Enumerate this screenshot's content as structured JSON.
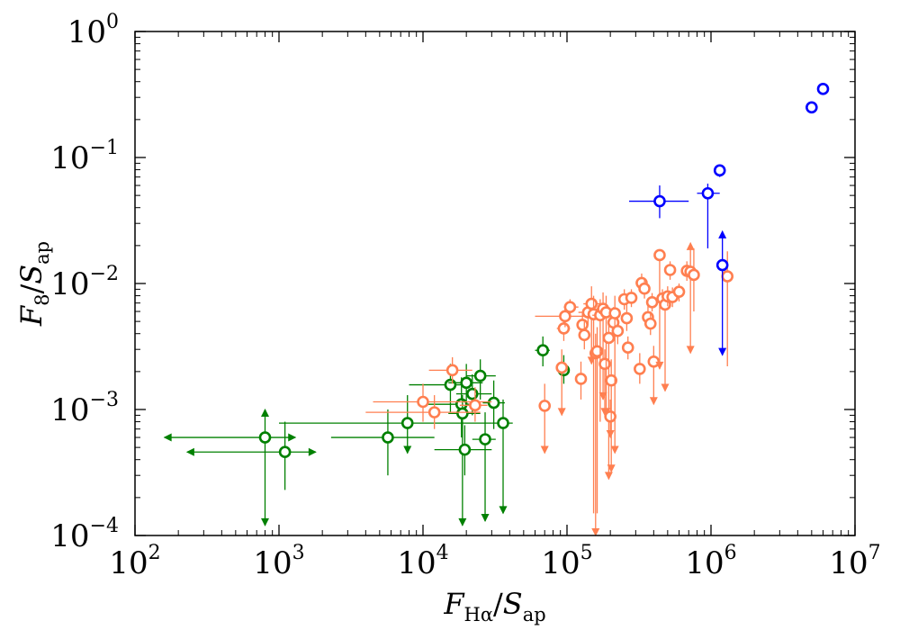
{
  "chart_data": {
    "type": "scatter",
    "x_scale": "log",
    "y_scale": "log",
    "xlim": [
      100,
      10000000
    ],
    "ylim": [
      0.0001,
      1
    ],
    "xlabel": {
      "main": "F",
      "sub": "Hα",
      "sep": "/",
      "main2": "S",
      "sub2": "ap"
    },
    "ylabel": {
      "main": "F",
      "sub": "8",
      "sep": "/",
      "main2": "S",
      "sub2": "ap"
    },
    "x_ticks": [
      {
        "value": 100,
        "base": "10",
        "exp": "2"
      },
      {
        "value": 1000,
        "base": "10",
        "exp": "3"
      },
      {
        "value": 10000,
        "base": "10",
        "exp": "4"
      },
      {
        "value": 100000,
        "base": "10",
        "exp": "5"
      },
      {
        "value": 1000000,
        "base": "10",
        "exp": "6"
      },
      {
        "value": 10000000,
        "base": "10",
        "exp": "7"
      }
    ],
    "y_ticks": [
      {
        "value": 0.0001,
        "base": "10",
        "exp": "−4"
      },
      {
        "value": 0.001,
        "base": "10",
        "exp": "−3"
      },
      {
        "value": 0.01,
        "base": "10",
        "exp": "−2"
      },
      {
        "value": 0.1,
        "base": "10",
        "exp": "−1"
      },
      {
        "value": 1,
        "base": "10",
        "exp": "0"
      }
    ],
    "grid": false,
    "series": [
      {
        "name": "green",
        "color": "#008000",
        "points": [
          {
            "x": 800,
            "y": 0.0006,
            "xerr": [
              160,
              1300
            ],
            "yerr": [
              0.00012,
              0.001
            ],
            "x_arrows": "both",
            "y_arrows": "both"
          },
          {
            "x": 1100,
            "y": 0.00046,
            "xerr": [
              230,
              1800
            ],
            "yerr": [
              0.00023,
              0.0008
            ],
            "x_arrows": "both"
          },
          {
            "x": 5700,
            "y": 0.0006,
            "xerr": [
              2300,
              12000
            ],
            "yerr": [
              0.0003,
              0.001
            ]
          },
          {
            "x": 7800,
            "y": 0.00078,
            "xerr": [
              1000,
              30000
            ],
            "yerr": [
              0.00045,
              0.0013
            ],
            "y_arrows": "down"
          },
          {
            "x": 15500,
            "y": 0.00157,
            "xerr": [
              8000,
              20000
            ],
            "yerr": [
              0.00095,
              0.0023
            ]
          },
          {
            "x": 18500,
            "y": 0.0011,
            "xerr": [
              10000,
              23000
            ],
            "yerr": [
              0.0006,
              0.0018
            ]
          },
          {
            "x": 18800,
            "y": 0.00093,
            "xerr": [
              15000,
              25000
            ],
            "yerr": [
              0.00012,
              0.0013
            ],
            "y_arrows": "down"
          },
          {
            "x": 19500,
            "y": 0.00048,
            "xerr": [
              12000,
              30000
            ],
            "yerr": [
              0.0003,
              0.00075
            ]
          },
          {
            "x": 20000,
            "y": 0.00163,
            "xerr": [
              15000,
              26000
            ],
            "yerr": [
              0.0011,
              0.0023
            ]
          },
          {
            "x": 22000,
            "y": 0.00133,
            "xerr": [
              17000,
              30000
            ],
            "yerr": [
              0.0009,
              0.0019
            ]
          },
          {
            "x": 25000,
            "y": 0.00185,
            "xerr": [
              20000,
              32000
            ],
            "yerr": [
              0.0012,
              0.0025
            ]
          },
          {
            "x": 27000,
            "y": 0.00058,
            "xerr": [
              22000,
              32000
            ],
            "yerr": [
              0.00013,
              0.00095
            ],
            "y_arrows": "down"
          },
          {
            "x": 31000,
            "y": 0.00113,
            "xerr": [
              26000,
              37000
            ],
            "yerr": [
              0.0007,
              0.0017
            ]
          },
          {
            "x": 36000,
            "y": 0.00078,
            "xerr": [
              30000,
              42000
            ],
            "yerr": [
              0.00015,
              0.0012
            ],
            "y_arrows": "down"
          },
          {
            "x": 68000,
            "y": 0.00295,
            "xerr": [
              60000,
              76000
            ],
            "yerr": [
              0.0022,
              0.0038
            ]
          },
          {
            "x": 95000,
            "y": 0.00205,
            "xerr": [
              87000,
              103000
            ],
            "yerr": [
              0.0016,
              0.0027
            ]
          }
        ]
      },
      {
        "name": "orange",
        "color": "#ff7f50",
        "points": [
          {
            "x": 10000,
            "y": 0.00115,
            "xerr": [
              4500,
              30000
            ],
            "yerr": [
              0.0008,
              0.0016
            ]
          },
          {
            "x": 12000,
            "y": 0.00095,
            "xerr": [
              4000,
              25000
            ],
            "yerr": [
              0.0007,
              0.0013
            ]
          },
          {
            "x": 16000,
            "y": 0.00205,
            "xerr": [
              11000,
              22000
            ],
            "yerr": [
              0.0016,
              0.0026
            ]
          },
          {
            "x": 23000,
            "y": 0.00108,
            "xerr": [
              18000,
              28000
            ],
            "yerr": [
              0.0008,
              0.0015
            ]
          },
          {
            "x": 70000,
            "y": 0.00107,
            "xerr": [
              65000,
              75000
            ],
            "yerr": [
              0.00045,
              0.0016
            ],
            "y_arrows": "down"
          },
          {
            "x": 92000,
            "y": 0.00215,
            "xerr": [
              86000,
              98000
            ],
            "yerr": [
              0.0009,
              0.003
            ],
            "y_arrows": "down"
          },
          {
            "x": 95000,
            "y": 0.0044,
            "xerr": [
              85000,
              105000
            ],
            "yerr": [
              0.0035,
              0.0055
            ]
          },
          {
            "x": 97000,
            "y": 0.0055,
            "xerr": [
              60000,
              140000
            ],
            "yerr": [
              0.0045,
              0.0065
            ]
          },
          {
            "x": 105000,
            "y": 0.0065,
            "xerr": [
              95000,
              120000
            ],
            "yerr": [
              0.0055,
              0.0075
            ]
          },
          {
            "x": 125000,
            "y": 0.00175,
            "xerr": [
              115000,
              135000
            ],
            "yerr": [
              0.0012,
              0.0024
            ]
          },
          {
            "x": 128000,
            "y": 0.0047,
            "xerr": [
              118000,
              140000
            ],
            "yerr": [
              0.0038,
              0.0058
            ]
          },
          {
            "x": 132000,
            "y": 0.0039,
            "xerr": [
              122000,
              145000
            ],
            "yerr": [
              0.003,
              0.005
            ]
          },
          {
            "x": 140000,
            "y": 0.0059,
            "xerr": [
              120000,
              170000
            ],
            "yerr": [
              0.0047,
              0.0074
            ]
          },
          {
            "x": 148000,
            "y": 0.0069,
            "xerr": [
              130000,
              170000
            ],
            "yerr": [
              0.0023,
              0.0095
            ],
            "y_arrows": "down"
          },
          {
            "x": 153000,
            "y": 0.0057,
            "xerr": [
              140000,
              170000
            ],
            "yerr": [
              0.00015,
              0.008
            ]
          },
          {
            "x": 158000,
            "y": 0.0028,
            "xerr": [
              150000,
              168000
            ],
            "yerr": [
              0.0001,
              0.004
            ],
            "y_arrows": "down"
          },
          {
            "x": 162000,
            "y": 0.0029,
            "xerr": [
              155000,
              170000
            ],
            "yerr": [
              0.00015,
              0.0045
            ]
          },
          {
            "x": 170000,
            "y": 0.0056,
            "xerr": [
              150000,
              190000
            ],
            "yerr": [
              0.0008,
              0.0075
            ]
          },
          {
            "x": 178000,
            "y": 0.0063,
            "xerr": [
              160000,
              200000
            ],
            "yerr": [
              0.0012,
              0.0085
            ],
            "y_arrows": "down"
          },
          {
            "x": 183000,
            "y": 0.0023,
            "xerr": [
              175000,
              192000
            ],
            "yerr": [
              0.0009,
              0.003
            ],
            "y_arrows": "down"
          },
          {
            "x": 187000,
            "y": 0.0059,
            "xerr": [
              170000,
              205000
            ],
            "yerr": [
              0.0009,
              0.008
            ],
            "y_arrows": "down"
          },
          {
            "x": 195000,
            "y": 0.0037,
            "xerr": [
              180000,
              210000
            ],
            "yerr": [
              0.00028,
              0.005
            ],
            "y_arrows": "down"
          },
          {
            "x": 200000,
            "y": 0.00088,
            "xerr": [
              190000,
              210000
            ],
            "yerr": [
              0.0006,
              0.0012
            ],
            "y_arrows": "down"
          },
          {
            "x": 203000,
            "y": 0.0017,
            "xerr": [
              193000,
              213000
            ],
            "yerr": [
              0.00032,
              0.0025
            ],
            "y_arrows": "down"
          },
          {
            "x": 210000,
            "y": 0.0049,
            "xerr": [
              195000,
              225000
            ],
            "yerr": [
              0.0035,
              0.0065
            ]
          },
          {
            "x": 215000,
            "y": 0.0058,
            "xerr": [
              200000,
              230000
            ],
            "yerr": [
              0.00045,
              0.008
            ],
            "y_arrows": "down"
          },
          {
            "x": 225000,
            "y": 0.0042,
            "xerr": [
              210000,
              240000
            ],
            "yerr": [
              0.0033,
              0.0055
            ]
          },
          {
            "x": 250000,
            "y": 0.0075,
            "xerr": [
              230000,
              280000
            ],
            "yerr": [
              0.0062,
              0.009
            ]
          },
          {
            "x": 260000,
            "y": 0.0053,
            "xerr": [
              240000,
              280000
            ],
            "yerr": [
              0.0042,
              0.0068
            ]
          },
          {
            "x": 265000,
            "y": 0.0031,
            "xerr": [
              250000,
              285000
            ],
            "yerr": [
              0.0025,
              0.0038
            ]
          },
          {
            "x": 280000,
            "y": 0.0077,
            "xerr": [
              260000,
              300000
            ],
            "yerr": [
              0.0065,
              0.009
            ]
          },
          {
            "x": 320000,
            "y": 0.0021,
            "xerr": [
              305000,
              335000
            ],
            "yerr": [
              0.0016,
              0.0028
            ]
          },
          {
            "x": 330000,
            "y": 0.0101,
            "xerr": [
              300000,
              360000
            ],
            "yerr": [
              0.0085,
              0.012
            ]
          },
          {
            "x": 345000,
            "y": 0.0091,
            "xerr": [
              320000,
              370000
            ],
            "yerr": [
              0.0076,
              0.011
            ]
          },
          {
            "x": 365000,
            "y": 0.0054,
            "xerr": [
              340000,
              390000
            ],
            "yerr": [
              0.0044,
              0.0067
            ]
          },
          {
            "x": 380000,
            "y": 0.0048,
            "xerr": [
              355000,
              405000
            ],
            "yerr": [
              0.0039,
              0.006
            ]
          },
          {
            "x": 390000,
            "y": 0.0071,
            "xerr": [
              365000,
              415000
            ],
            "yerr": [
              0.006,
              0.0084
            ]
          },
          {
            "x": 400000,
            "y": 0.0024,
            "xerr": [
              385000,
              415000
            ],
            "yerr": [
              0.0011,
              0.0032
            ],
            "y_arrows": "down"
          },
          {
            "x": 440000,
            "y": 0.0168,
            "xerr": [
              420000,
              460000
            ],
            "yerr": [
              0.0021,
              0.0185
            ],
            "y_arrows": "down"
          },
          {
            "x": 460000,
            "y": 0.0076,
            "xerr": [
              430000,
              490000
            ],
            "yerr": [
              0.0063,
              0.009
            ]
          },
          {
            "x": 480000,
            "y": 0.0068,
            "xerr": [
              450000,
              510000
            ],
            "yerr": [
              0.0014,
              0.0085
            ],
            "y_arrows": "down"
          },
          {
            "x": 500000,
            "y": 0.0079,
            "xerr": [
              470000,
              530000
            ],
            "yerr": [
              0.0066,
              0.0095
            ]
          },
          {
            "x": 520000,
            "y": 0.0128,
            "xerr": [
              490000,
              550000
            ],
            "yerr": [
              0.0107,
              0.015
            ]
          },
          {
            "x": 540000,
            "y": 0.0078,
            "xerr": [
              510000,
              570000
            ],
            "yerr": [
              0.0065,
              0.0093
            ]
          },
          {
            "x": 600000,
            "y": 0.0086,
            "xerr": [
              570000,
              630000
            ],
            "yerr": [
              0.0072,
              0.01
            ]
          },
          {
            "x": 680000,
            "y": 0.0126,
            "xerr": [
              650000,
              710000
            ],
            "yerr": [
              0.0105,
              0.015
            ]
          },
          {
            "x": 720000,
            "y": 0.0124,
            "xerr": [
              690000,
              750000
            ],
            "yerr": [
              0.0028,
              0.021
            ],
            "y_arrows": "both"
          },
          {
            "x": 760000,
            "y": 0.0117,
            "xerr": [
              730000,
              790000
            ],
            "yerr": [
              0.006,
              0.019
            ]
          },
          {
            "x": 1300000,
            "y": 0.0114,
            "xerr": [
              1250000,
              1350000
            ],
            "yerr": [
              0.0022,
              0.018
            ]
          }
        ]
      },
      {
        "name": "blue",
        "color": "#0000ff",
        "points": [
          {
            "x": 440000,
            "y": 0.045,
            "xerr": [
              270000,
              700000
            ],
            "yerr": [
              0.033,
              0.06
            ]
          },
          {
            "x": 950000,
            "y": 0.052,
            "xerr": [
              800000,
              1150000
            ],
            "yerr": [
              0.019,
              0.062
            ]
          },
          {
            "x": 1150000,
            "y": 0.079,
            "xerr": [
              1100000,
              1200000
            ],
            "yerr": [
              0.07,
              0.088
            ]
          },
          {
            "x": 1200000,
            "y": 0.014,
            "xerr": [
              1150000,
              1250000
            ],
            "yerr": [
              0.0027,
              0.026
            ],
            "y_arrows": "both"
          },
          {
            "x": 5000000,
            "y": 0.25,
            "xerr": [
              4900000,
              5100000
            ],
            "yerr": [
              0.24,
              0.26
            ]
          },
          {
            "x": 6000000,
            "y": 0.35,
            "xerr": [
              5900000,
              6100000
            ],
            "yerr": [
              0.34,
              0.36
            ]
          }
        ]
      }
    ]
  }
}
